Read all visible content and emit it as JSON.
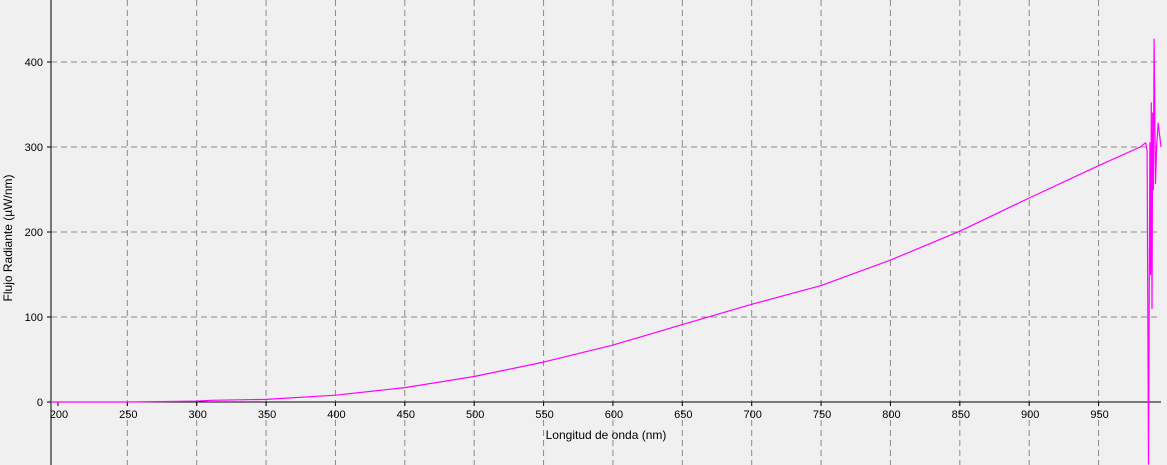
{
  "chart_data": {
    "type": "line",
    "xlabel": "Longitud de onda (nm)",
    "ylabel": "Flujo Radiante (µW/nm)",
    "xlim": [
      195,
      995
    ],
    "ylim": [
      -73,
      470
    ],
    "x_ticks": [
      200,
      250,
      300,
      350,
      400,
      450,
      500,
      550,
      600,
      650,
      700,
      750,
      800,
      850,
      900,
      950
    ],
    "y_ticks": [
      0,
      100,
      200,
      300,
      400
    ],
    "grid": true,
    "line_color": "#ff00ff",
    "series": [
      {
        "x": [
          195,
          250,
          300,
          310,
          350,
          400,
          450,
          500,
          550,
          600,
          650,
          700,
          750,
          800,
          850,
          900,
          950,
          980,
          984,
          985,
          986,
          987,
          987.5,
          988,
          988.5,
          989,
          989.5,
          990,
          991,
          992,
          993,
          995
        ],
        "y": [
          0,
          0,
          1,
          2,
          3,
          8,
          17,
          30,
          47,
          67,
          91,
          115,
          137,
          167,
          201,
          240,
          278,
          300,
          305,
          296,
          -73,
          305,
          150,
          352,
          110,
          340,
          250,
          427,
          257,
          305,
          328,
          300
        ]
      }
    ]
  }
}
